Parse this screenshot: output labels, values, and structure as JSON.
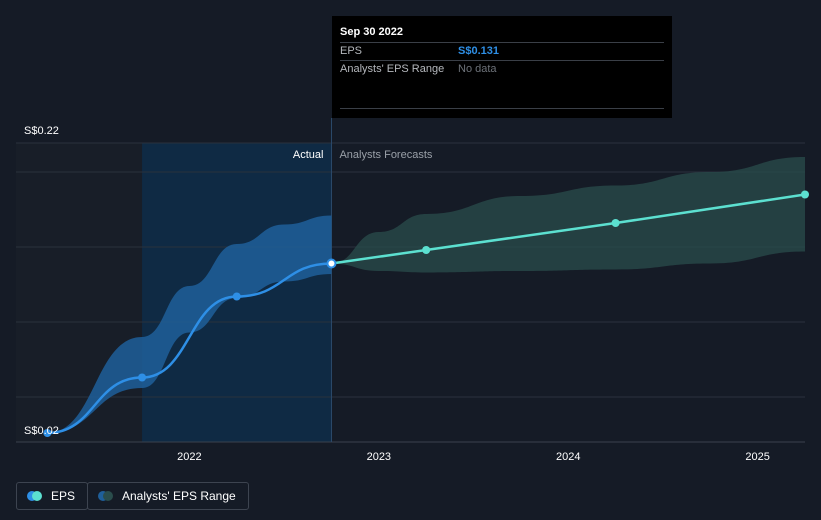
{
  "colors": {
    "background": "#151b26",
    "actual_shade": "#0f2a44",
    "eps_line": "#2e8fe6",
    "forecast_line": "#5ce0d0",
    "actual_range": "#1f5f9a",
    "forecast_range": "#2a4d4c",
    "gridline": "#2a313d",
    "text": "#ffffff",
    "muted_text": "#b5b8bd"
  },
  "tooltip": {
    "date": "Sep 30 2022",
    "rows": [
      {
        "label": "EPS",
        "value": "S$0.131"
      },
      {
        "label": "Analysts' EPS Range",
        "value": "No data"
      }
    ]
  },
  "chart_data": {
    "type": "line",
    "y_top_label": "S$0.22",
    "y_bottom_label": "S$0.02",
    "ylim": [
      0.02,
      0.22
    ],
    "x_ticks": [
      "2022",
      "2023",
      "2024",
      "2025"
    ],
    "section_labels": {
      "actual": "Actual",
      "forecast": "Analysts Forecasts"
    },
    "divider_date": 2022.75,
    "series": [
      {
        "name": "EPS",
        "kind": "actual",
        "x": [
          2021.25,
          2021.75,
          2022.25,
          2022.75
        ],
        "values": [
          0.018,
          0.055,
          0.109,
          0.131
        ]
      },
      {
        "name": "EPS",
        "kind": "forecast",
        "x": [
          2022.75,
          2023.25,
          2024.25,
          2025.25
        ],
        "values": [
          0.131,
          0.14,
          0.158,
          0.177
        ]
      }
    ],
    "ranges": [
      {
        "name": "Analysts' EPS Range",
        "kind": "actual",
        "x": [
          2021.25,
          2021.75,
          2022.0,
          2022.25,
          2022.5,
          2022.75
        ],
        "low": [
          0.018,
          0.048,
          0.085,
          0.108,
          0.119,
          0.124
        ],
        "high": [
          0.018,
          0.082,
          0.116,
          0.144,
          0.157,
          0.163
        ]
      },
      {
        "name": "Analysts' EPS Range",
        "kind": "forecast",
        "x": [
          2022.75,
          2023.0,
          2023.25,
          2023.75,
          2024.25,
          2024.75,
          2025.25
        ],
        "low": [
          0.131,
          0.126,
          0.125,
          0.126,
          0.127,
          0.131,
          0.139
        ],
        "high": [
          0.131,
          0.152,
          0.164,
          0.176,
          0.183,
          0.192,
          0.202
        ]
      }
    ],
    "legend": [
      "EPS",
      "Analysts' EPS Range"
    ]
  }
}
